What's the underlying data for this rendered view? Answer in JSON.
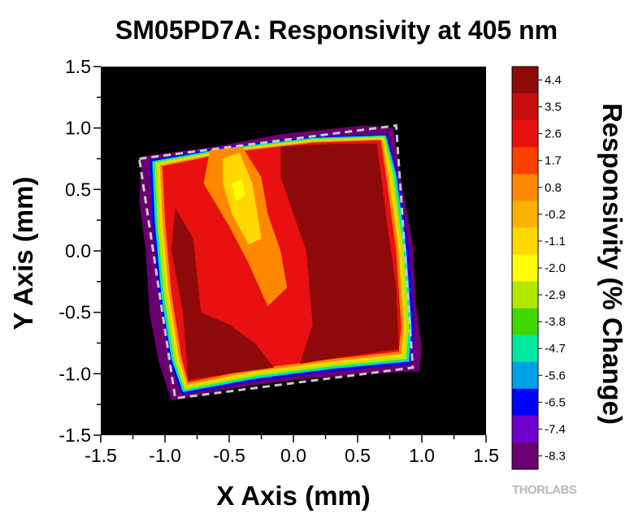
{
  "chart_data": {
    "type": "heatmap",
    "title": "SM05PD7A: Responsivity at 405 nm",
    "xlabel": "X Axis (mm)",
    "ylabel": "Y Axis (mm)",
    "xlim": [
      -1.5,
      1.5
    ],
    "ylim": [
      -1.5,
      1.5
    ],
    "x_ticks": [
      "-1.5",
      "-1.0",
      "-0.5",
      "0.0",
      "0.5",
      "1.0",
      "1.5"
    ],
    "y_ticks": [
      "-1.5",
      "-1.0",
      "-0.5",
      "0.0",
      "0.5",
      "1.0",
      "1.5"
    ],
    "background_color": "#000000",
    "colorbar": {
      "title": "Responsivity (% Change)",
      "levels": [
        "4.4",
        "3.5",
        "2.6",
        "1.7",
        "0.8",
        "-0.2",
        "-1.1",
        "-2.0",
        "-2.9",
        "-3.8",
        "-4.7",
        "-5.6",
        "-6.5",
        "-7.4",
        "-8.3"
      ],
      "colors": [
        "#8e0a0a",
        "#c80e0e",
        "#e81010",
        "#ff4000",
        "#ff8800",
        "#ffb000",
        "#ffd800",
        "#ffff00",
        "#b0e800",
        "#40d800",
        "#00e8a0",
        "#00a0e8",
        "#0000ff",
        "#7000d0",
        "#6a0070"
      ]
    },
    "sensor_outline": {
      "style": "dashed",
      "color": "#c8c8c8",
      "corners": [
        [
          -1.2,
          0.75
        ],
        [
          0.8,
          1.02
        ],
        [
          0.93,
          -0.95
        ],
        [
          -0.92,
          -1.2
        ]
      ]
    },
    "regions": [
      {
        "name": "rim",
        "level": "-8.3",
        "polygon": [
          [
            -1.18,
            0.77
          ],
          [
            -0.6,
            0.85
          ],
          [
            -0.1,
            0.95
          ],
          [
            0.55,
            1.02
          ],
          [
            0.78,
            1.0
          ],
          [
            0.82,
            0.68
          ],
          [
            0.93,
            0.05
          ],
          [
            0.95,
            -0.4
          ],
          [
            1.0,
            -0.8
          ],
          [
            0.98,
            -0.98
          ],
          [
            0.55,
            -1.0
          ],
          [
            0.0,
            -1.05
          ],
          [
            -0.5,
            -1.12
          ],
          [
            -0.95,
            -1.22
          ],
          [
            -1.05,
            -0.9
          ],
          [
            -1.12,
            -0.5
          ],
          [
            -1.15,
            0.0
          ],
          [
            -1.2,
            0.4
          ]
        ]
      },
      {
        "name": "edge-blue",
        "level": "-6.5",
        "polygon": [
          [
            -1.12,
            0.74
          ],
          [
            -0.5,
            0.85
          ],
          [
            0.15,
            0.93
          ],
          [
            0.73,
            0.95
          ],
          [
            0.82,
            0.62
          ],
          [
            0.9,
            0.0
          ],
          [
            0.94,
            -0.62
          ],
          [
            0.92,
            -0.92
          ],
          [
            0.3,
            -0.98
          ],
          [
            -0.3,
            -1.06
          ],
          [
            -0.87,
            -1.17
          ],
          [
            -0.97,
            -0.88
          ],
          [
            -1.05,
            -0.35
          ],
          [
            -1.1,
            0.25
          ]
        ]
      },
      {
        "name": "edge-cyan",
        "level": "-4.7",
        "polygon": [
          [
            -1.1,
            0.73
          ],
          [
            -0.5,
            0.84
          ],
          [
            0.15,
            0.92
          ],
          [
            0.72,
            0.94
          ],
          [
            0.8,
            0.62
          ],
          [
            0.88,
            0.0
          ],
          [
            0.92,
            -0.62
          ],
          [
            0.9,
            -0.9
          ],
          [
            0.3,
            -0.96
          ],
          [
            -0.3,
            -1.04
          ],
          [
            -0.86,
            -1.15
          ],
          [
            -0.95,
            -0.88
          ],
          [
            -1.03,
            -0.35
          ],
          [
            -1.08,
            0.25
          ]
        ]
      },
      {
        "name": "edge-green",
        "level": "-2.9",
        "polygon": [
          [
            -1.08,
            0.72
          ],
          [
            -0.5,
            0.83
          ],
          [
            0.15,
            0.91
          ],
          [
            0.71,
            0.93
          ],
          [
            0.78,
            0.62
          ],
          [
            0.86,
            0.0
          ],
          [
            0.9,
            -0.62
          ],
          [
            0.88,
            -0.88
          ],
          [
            0.3,
            -0.94
          ],
          [
            -0.3,
            -1.02
          ],
          [
            -0.85,
            -1.13
          ],
          [
            -0.93,
            -0.88
          ],
          [
            -1.01,
            -0.35
          ],
          [
            -1.06,
            0.25
          ]
        ]
      },
      {
        "name": "edge-yellow",
        "level": "-1.1",
        "polygon": [
          [
            -1.06,
            0.71
          ],
          [
            -0.5,
            0.82
          ],
          [
            0.15,
            0.9
          ],
          [
            0.7,
            0.92
          ],
          [
            0.76,
            0.62
          ],
          [
            0.84,
            0.0
          ],
          [
            0.88,
            -0.62
          ],
          [
            0.86,
            -0.86
          ],
          [
            0.3,
            -0.92
          ],
          [
            -0.3,
            -1.0
          ],
          [
            -0.84,
            -1.11
          ],
          [
            -0.91,
            -0.88
          ],
          [
            -0.99,
            -0.35
          ],
          [
            -1.04,
            0.25
          ]
        ]
      },
      {
        "name": "edge-orange",
        "level": "0.8",
        "polygon": [
          [
            -1.04,
            0.7
          ],
          [
            -0.5,
            0.81
          ],
          [
            0.15,
            0.89
          ],
          [
            0.69,
            0.91
          ],
          [
            0.74,
            0.62
          ],
          [
            0.82,
            0.0
          ],
          [
            0.86,
            -0.62
          ],
          [
            0.84,
            -0.84
          ],
          [
            0.3,
            -0.9
          ],
          [
            -0.3,
            -0.98
          ],
          [
            -0.83,
            -1.09
          ],
          [
            -0.89,
            -0.88
          ],
          [
            -0.97,
            -0.35
          ],
          [
            -1.02,
            0.25
          ]
        ]
      },
      {
        "name": "body-red",
        "level": "2.6",
        "polygon": [
          [
            -1.02,
            0.69
          ],
          [
            -0.5,
            0.8
          ],
          [
            0.15,
            0.88
          ],
          [
            0.68,
            0.9
          ],
          [
            0.72,
            0.62
          ],
          [
            0.8,
            0.0
          ],
          [
            0.84,
            -0.62
          ],
          [
            0.82,
            -0.82
          ],
          [
            0.3,
            -0.88
          ],
          [
            -0.3,
            -0.96
          ],
          [
            -0.82,
            -1.07
          ],
          [
            -0.87,
            -0.88
          ],
          [
            -0.95,
            -0.35
          ],
          [
            -1.0,
            0.25
          ]
        ]
      },
      {
        "name": "dark-left",
        "level": "4.4",
        "polygon": [
          [
            -0.92,
            0.35
          ],
          [
            -0.78,
            0.1
          ],
          [
            -0.72,
            -0.5
          ],
          [
            -0.5,
            -0.6
          ],
          [
            -0.3,
            -0.75
          ],
          [
            -0.15,
            -0.95
          ],
          [
            -0.5,
            -1.0
          ],
          [
            -0.82,
            -1.05
          ],
          [
            -0.86,
            -0.5
          ],
          [
            -0.95,
            0.0
          ]
        ]
      },
      {
        "name": "dark-right",
        "level": "4.4",
        "polygon": [
          [
            -0.1,
            0.85
          ],
          [
            0.3,
            0.87
          ],
          [
            0.65,
            0.87
          ],
          [
            0.72,
            0.3
          ],
          [
            0.8,
            -0.3
          ],
          [
            0.82,
            -0.8
          ],
          [
            0.4,
            -0.86
          ],
          [
            0.05,
            -0.92
          ],
          [
            0.15,
            -0.6
          ],
          [
            0.1,
            0.0
          ],
          [
            0.0,
            0.3
          ],
          [
            -0.1,
            0.6
          ]
        ]
      },
      {
        "name": "bright-orange",
        "level": "0.8",
        "polygon": [
          [
            -0.65,
            0.82
          ],
          [
            -0.4,
            0.85
          ],
          [
            -0.25,
            0.6
          ],
          [
            -0.2,
            0.3
          ],
          [
            -0.1,
            0.0
          ],
          [
            -0.05,
            -0.3
          ],
          [
            -0.2,
            -0.45
          ],
          [
            -0.35,
            -0.1
          ],
          [
            -0.5,
            0.2
          ],
          [
            -0.7,
            0.55
          ]
        ]
      },
      {
        "name": "bright-yellow",
        "level": "-1.1",
        "polygon": [
          [
            -0.55,
            0.75
          ],
          [
            -0.42,
            0.8
          ],
          [
            -0.32,
            0.55
          ],
          [
            -0.28,
            0.3
          ],
          [
            -0.25,
            0.1
          ],
          [
            -0.35,
            0.05
          ],
          [
            -0.48,
            0.3
          ],
          [
            -0.55,
            0.55
          ]
        ]
      },
      {
        "name": "bright-core",
        "level": "-2.0",
        "polygon": [
          [
            -0.48,
            0.55
          ],
          [
            -0.4,
            0.58
          ],
          [
            -0.38,
            0.45
          ],
          [
            -0.45,
            0.4
          ]
        ]
      }
    ]
  },
  "logo": {
    "text": "THORLABS"
  }
}
